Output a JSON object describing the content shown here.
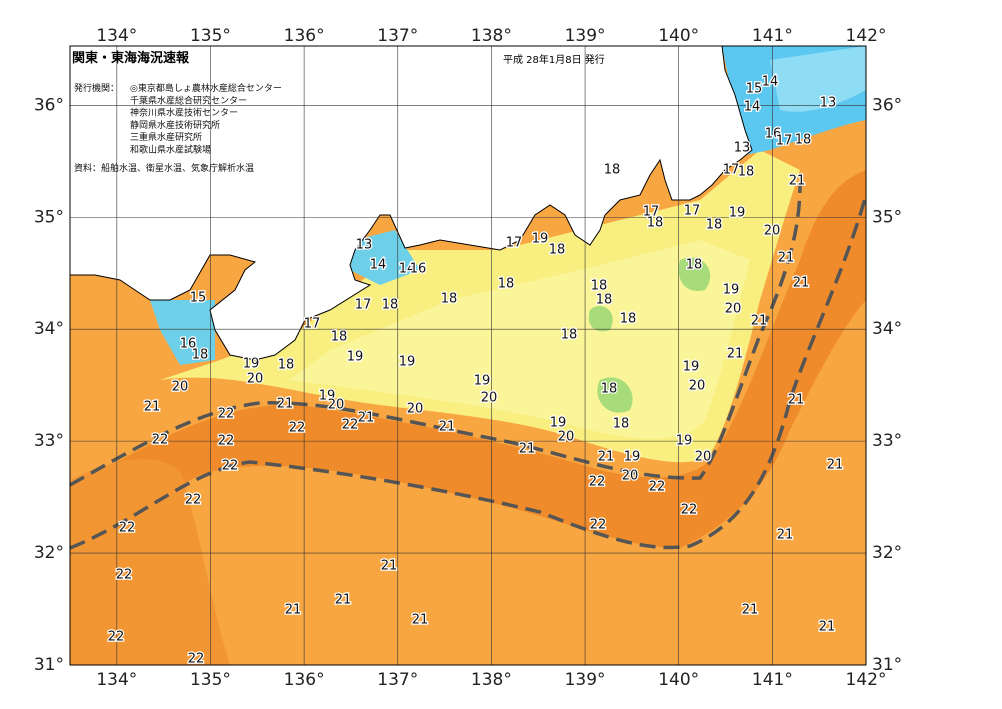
{
  "header": {
    "title": "関東・東海海況速報",
    "issued": "平成 28年1月8日 発行",
    "issuer_label": "発行機関：",
    "issuers": [
      "◎東京都島しょ農林水産総合センター",
      "千葉県水産総合研究センター",
      "神奈川県水産技術センター",
      "静岡県水産技術研究所",
      "三重県水産研究所",
      "和歌山県水産試験場"
    ],
    "source": "資料：船舶水温、衛星水温、気象庁解析水温"
  },
  "map": {
    "xlim": [
      133.5,
      142
    ],
    "ylim": [
      31,
      36.53
    ],
    "lon_ticks": [
      {
        "value": 134,
        "label": "134°"
      },
      {
        "value": 135,
        "label": "135°"
      },
      {
        "value": 136,
        "label": "136°"
      },
      {
        "value": 137,
        "label": "137°"
      },
      {
        "value": 138,
        "label": "138°"
      },
      {
        "value": 139,
        "label": "139°"
      },
      {
        "value": 140,
        "label": "140°"
      },
      {
        "value": 141,
        "label": "141°"
      },
      {
        "value": 142,
        "label": "142°"
      }
    ],
    "lat_ticks": [
      {
        "value": 31,
        "label": "31°"
      },
      {
        "value": 32,
        "label": "32°"
      },
      {
        "value": 33,
        "label": "33°"
      },
      {
        "value": 34,
        "label": "34°"
      },
      {
        "value": 35,
        "label": "35°"
      },
      {
        "value": 36,
        "label": "36°"
      }
    ],
    "isotherm_labels": [
      14,
      15,
      13,
      14,
      16,
      17,
      18,
      13,
      17,
      18,
      21,
      18,
      17,
      18,
      17,
      18,
      19,
      20,
      21,
      21,
      17,
      19,
      18,
      13,
      14,
      14,
      16,
      18,
      18,
      18,
      18,
      18,
      19,
      20,
      21,
      15,
      17,
      18,
      17,
      18,
      18,
      18,
      16,
      18,
      19,
      19,
      21,
      19,
      18,
      20,
      19,
      19,
      20,
      20,
      18,
      19,
      20,
      20,
      21,
      21,
      21,
      22,
      20,
      21,
      22,
      22,
      21,
      18,
      19,
      20,
      19,
      22,
      22,
      21,
      21,
      19,
      20,
      21,
      22,
      20,
      22,
      22,
      22,
      22,
      22,
      22,
      21,
      22,
      21,
      21,
      21,
      21,
      21,
      21,
      22,
      22
    ]
  }
}
